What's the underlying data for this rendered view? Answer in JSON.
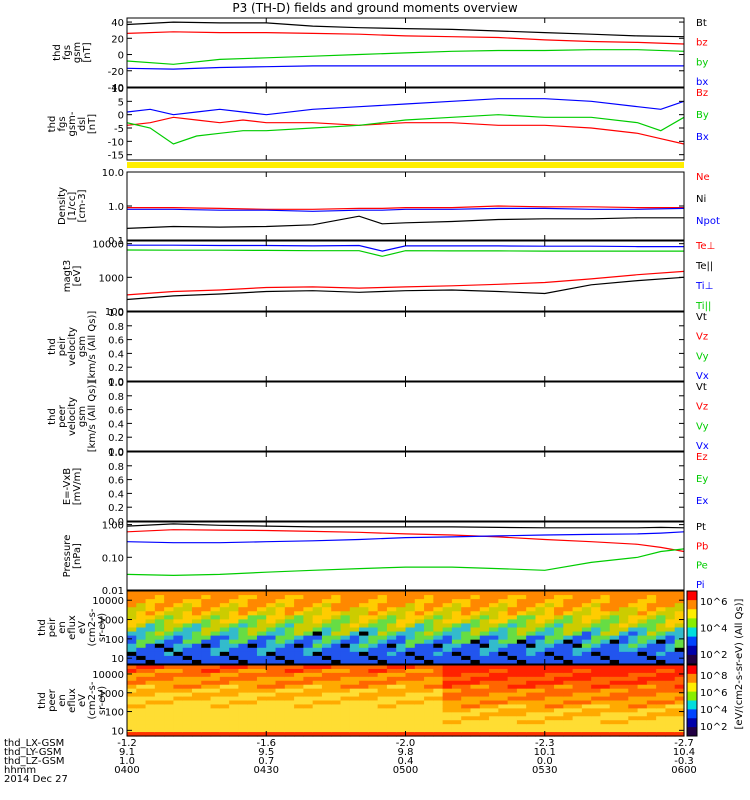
{
  "title": "P3 (TH-D) fields and ground moments overview",
  "chart_data": [
    {
      "type": "line",
      "panel": "fgs_gsm_total",
      "ylabel_lines": [
        "thd",
        "fgs",
        "gsm",
        "[nT]"
      ],
      "ylim": [
        -40,
        45
      ],
      "yticks": [
        "40",
        "20",
        "0",
        "-20",
        "-40"
      ],
      "ytick_values": [
        40,
        20,
        0,
        -20,
        -40
      ],
      "legend": [
        "Bt",
        "bz",
        "by",
        "bx"
      ],
      "x": [
        0,
        10,
        20,
        30,
        40,
        50,
        60,
        70,
        80,
        90,
        100,
        110,
        120
      ],
      "series": [
        {
          "name": "Bt",
          "color": "#000000",
          "values": [
            37,
            40,
            39,
            39,
            35,
            33,
            32,
            31,
            29,
            27,
            25,
            23,
            22
          ]
        },
        {
          "name": "bz",
          "color": "#ff0000",
          "values": [
            26,
            28,
            27,
            27,
            26,
            25,
            23,
            22,
            21,
            18,
            16,
            15,
            13
          ]
        },
        {
          "name": "by",
          "color": "#00cc00",
          "values": [
            -8,
            -12,
            -6,
            -4,
            -2,
            0,
            2,
            4,
            5,
            5,
            6,
            6,
            4
          ]
        },
        {
          "name": "bx",
          "color": "#0000ff",
          "values": [
            -17,
            -18,
            -16,
            -15,
            -14,
            -14,
            -14,
            -14,
            -14,
            -14,
            -14,
            -14,
            -14
          ]
        }
      ]
    },
    {
      "type": "line",
      "panel": "fgs_dsl",
      "ylabel_lines": [
        "thd",
        "fgs",
        "gsm-",
        "dsl",
        "[nT]"
      ],
      "ylim": [
        -17,
        10
      ],
      "yticks": [
        "10",
        "5",
        "0",
        "-5",
        "-10",
        "-15"
      ],
      "ytick_values": [
        10,
        5,
        0,
        -5,
        -10,
        -15
      ],
      "legend": [
        "Bz",
        "By",
        "Bx"
      ],
      "x": [
        0,
        5,
        10,
        15,
        20,
        25,
        30,
        40,
        50,
        60,
        70,
        80,
        90,
        100,
        110,
        115,
        120
      ],
      "series": [
        {
          "name": "Bz",
          "color": "#ff0000",
          "values": [
            -4,
            -3,
            -1,
            -2,
            -3,
            -2,
            -3,
            -3,
            -4,
            -3,
            -3,
            -4,
            -4,
            -5,
            -7,
            -9,
            -11
          ]
        },
        {
          "name": "By",
          "color": "#00cc00",
          "values": [
            -3,
            -5,
            -11,
            -8,
            -7,
            -6,
            -6,
            -5,
            -4,
            -2,
            -1,
            0,
            -1,
            -1,
            -3,
            -6,
            -1
          ]
        },
        {
          "name": "Bx",
          "color": "#0000ff",
          "values": [
            1,
            2,
            0,
            1,
            2,
            1,
            0,
            2,
            3,
            4,
            5,
            6,
            6,
            5,
            3,
            2,
            5
          ]
        }
      ]
    },
    {
      "type": "line",
      "panel": "density",
      "ylabel_lines": [
        "Density",
        "[1/cc]",
        "[cm-3]"
      ],
      "yscale": "log",
      "ylim": [
        0.1,
        10
      ],
      "yticks": [
        "10.0",
        "1.0",
        "0.1"
      ],
      "ytick_values": [
        10,
        1,
        0.1
      ],
      "legend": [
        "Ne",
        "Ni",
        "Npot"
      ],
      "legend_colors": [
        "#ff0000",
        "#000000",
        "#0000ff"
      ],
      "x": [
        0,
        10,
        20,
        30,
        40,
        50,
        55,
        60,
        70,
        80,
        90,
        100,
        110,
        120
      ],
      "series": [
        {
          "name": "Ne",
          "color": "#ff0000",
          "values": [
            0.9,
            0.9,
            0.85,
            0.8,
            0.8,
            0.85,
            0.85,
            0.9,
            0.9,
            1.0,
            0.95,
            0.95,
            0.9,
            0.9
          ]
        },
        {
          "name": "Ni",
          "color": "#000000",
          "values": [
            0.22,
            0.25,
            0.24,
            0.25,
            0.28,
            0.5,
            0.3,
            0.32,
            0.35,
            0.4,
            0.42,
            0.42,
            0.45,
            0.45
          ]
        },
        {
          "name": "Npot",
          "color": "#0000ff",
          "values": [
            0.8,
            0.8,
            0.75,
            0.75,
            0.7,
            0.75,
            0.75,
            0.8,
            0.8,
            0.85,
            0.85,
            0.8,
            0.8,
            0.85
          ]
        }
      ]
    },
    {
      "type": "line",
      "panel": "temperature",
      "ylabel_lines": [
        "magt3",
        "[eV]"
      ],
      "yscale": "log",
      "ylim": [
        100,
        12000
      ],
      "yticks": [
        "10000",
        "1000",
        "100"
      ],
      "ytick_values": [
        10000,
        1000,
        100
      ],
      "legend": [
        "Te⊥",
        "Te||",
        "Ti⊥",
        "Ti||"
      ],
      "x": [
        0,
        10,
        20,
        30,
        40,
        50,
        55,
        60,
        70,
        80,
        90,
        100,
        110,
        120
      ],
      "series": [
        {
          "name": "Te⊥",
          "color": "#ff0000",
          "values": [
            300,
            380,
            420,
            500,
            520,
            480,
            500,
            520,
            560,
            620,
            700,
            900,
            1200,
            1500
          ]
        },
        {
          "name": "Te||",
          "color": "#000000",
          "values": [
            220,
            280,
            320,
            380,
            400,
            360,
            380,
            400,
            420,
            380,
            330,
            600,
            800,
            1000
          ]
        },
        {
          "name": "Ti⊥",
          "color": "#0000ff",
          "values": [
            9000,
            9000,
            8800,
            8800,
            8600,
            8800,
            6000,
            8600,
            8600,
            8600,
            8400,
            8400,
            8200,
            8200
          ]
        },
        {
          "name": "Ti||",
          "color": "#00cc00",
          "values": [
            6500,
            6400,
            6400,
            6300,
            6200,
            6200,
            4200,
            6200,
            6100,
            6100,
            6000,
            6000,
            6000,
            6000
          ]
        }
      ]
    },
    {
      "type": "line",
      "panel": "ion_velocity",
      "ylabel_lines": [
        "thd",
        "peir",
        "velocity",
        "gsm",
        "[km/s (All Qs)]"
      ],
      "ylim": [
        0,
        1
      ],
      "yticks": [
        "1.0",
        "0.8",
        "0.6",
        "0.4",
        "0.2",
        "0.0"
      ],
      "ytick_values": [
        1,
        0.8,
        0.6,
        0.4,
        0.2,
        0
      ],
      "legend": [
        "Vt",
        "Vz",
        "Vy",
        "Vx"
      ],
      "legend_colors": [
        "#000000",
        "#ff0000",
        "#00cc00",
        "#0000ff"
      ],
      "series": []
    },
    {
      "type": "line",
      "panel": "electron_velocity",
      "ylabel_lines": [
        "thd",
        "peer",
        "velocity",
        "gsm",
        "[km/s (All Qs)]"
      ],
      "ylim": [
        0,
        1
      ],
      "yticks": [
        "1.0",
        "0.8",
        "0.6",
        "0.4",
        "0.2",
        "0.0"
      ],
      "ytick_values": [
        1,
        0.8,
        0.6,
        0.4,
        0.2,
        0
      ],
      "legend": [
        "Vt",
        "Vz",
        "Vy",
        "Vx"
      ],
      "legend_colors": [
        "#000000",
        "#ff0000",
        "#00cc00",
        "#0000ff"
      ],
      "series": []
    },
    {
      "type": "line",
      "panel": "e_field",
      "ylabel_lines": [
        "E=-VxB",
        "[mV/m]"
      ],
      "ylim": [
        0,
        1
      ],
      "yticks": [
        "1.0",
        "0.8",
        "0.6",
        "0.4",
        "0.2",
        "0.0"
      ],
      "ytick_values": [
        1,
        0.8,
        0.6,
        0.4,
        0.2,
        0
      ],
      "legend": [
        "Ez",
        "Ey",
        "Ex"
      ],
      "legend_colors": [
        "#ff0000",
        "#00cc00",
        "#0000ff"
      ],
      "series": []
    },
    {
      "type": "line",
      "panel": "pressure",
      "ylabel_lines": [
        "Pressure",
        "[nPa]"
      ],
      "yscale": "log",
      "ylim": [
        0.01,
        1.2
      ],
      "yticks": [
        "1.00",
        "0.10",
        "0.01"
      ],
      "ytick_values": [
        1,
        0.1,
        0.01
      ],
      "legend": [
        "Pt",
        "Pb",
        "Pe",
        "Pi"
      ],
      "legend_colors": [
        "#000000",
        "#ff0000",
        "#00cc00",
        "#0000ff"
      ],
      "x": [
        0,
        10,
        20,
        30,
        40,
        50,
        60,
        70,
        80,
        90,
        100,
        110,
        115,
        120
      ],
      "series": [
        {
          "name": "Pt",
          "color": "#000000",
          "values": [
            0.9,
            1.05,
            0.95,
            0.9,
            0.85,
            0.85,
            0.85,
            0.85,
            0.82,
            0.8,
            0.8,
            0.8,
            0.82,
            0.8
          ]
        },
        {
          "name": "Pb",
          "color": "#ff0000",
          "values": [
            0.6,
            0.7,
            0.68,
            0.66,
            0.62,
            0.58,
            0.52,
            0.48,
            0.42,
            0.35,
            0.3,
            0.25,
            0.2,
            0.15
          ]
        },
        {
          "name": "Pe",
          "color": "#00cc00",
          "values": [
            0.03,
            0.028,
            0.03,
            0.035,
            0.04,
            0.045,
            0.05,
            0.05,
            0.045,
            0.04,
            0.07,
            0.1,
            0.15,
            0.18
          ]
        },
        {
          "name": "Pi",
          "color": "#0000ff",
          "values": [
            0.3,
            0.28,
            0.28,
            0.3,
            0.32,
            0.35,
            0.4,
            0.42,
            0.45,
            0.48,
            0.5,
            0.52,
            0.55,
            0.6
          ]
        }
      ]
    },
    {
      "type": "heatmap",
      "panel": "ion_energy_flux",
      "ylabel_lines": [
        "thd",
        "peir",
        "en",
        "eflux",
        "eV",
        "(cm2-s-",
        "sr-eV)"
      ],
      "yscale": "log",
      "ylim": [
        5,
        30000
      ],
      "yticks": [
        "10000",
        "1000",
        "100",
        "10"
      ],
      "ytick_values": [
        10000,
        1000,
        100,
        10
      ],
      "colorbar_ticks": [
        "10^6",
        "10^4",
        "10^2"
      ]
    },
    {
      "type": "heatmap",
      "panel": "electron_energy_flux",
      "ylabel_lines": [
        "thd",
        "peer",
        "en",
        "eflux",
        "eV",
        "(cm2-s-",
        "sr-eV)"
      ],
      "yscale": "log",
      "ylim": [
        5,
        30000
      ],
      "yticks": [
        "10000",
        "1000",
        "100",
        "10"
      ],
      "ytick_values": [
        10000,
        1000,
        100,
        10
      ],
      "colorbar_ticks": [
        "10^8",
        "10^6",
        "10^4",
        "10^2"
      ]
    }
  ],
  "colorbar_label": "[eV/(cm2-s-sr-eV) (All Qs)]",
  "footer": {
    "rows": [
      {
        "label": "thd_LX-GSM",
        "values": [
          "-1.2",
          "-1.6",
          "-2.0",
          "-2.3",
          "-2.7"
        ]
      },
      {
        "label": "thd_LY-GSM",
        "values": [
          "9.1",
          "9.5",
          "9.8",
          "10.1",
          "10.4"
        ]
      },
      {
        "label": "thd_LZ-GSM",
        "values": [
          "1.0",
          "0.7",
          "0.4",
          "0.0",
          "-0.3"
        ]
      },
      {
        "label": "hhmm",
        "values": [
          "0400",
          "0430",
          "0500",
          "0530",
          "0600"
        ]
      }
    ],
    "date": "2014 Dec 27"
  },
  "time_range_minutes": [
    0,
    120
  ]
}
